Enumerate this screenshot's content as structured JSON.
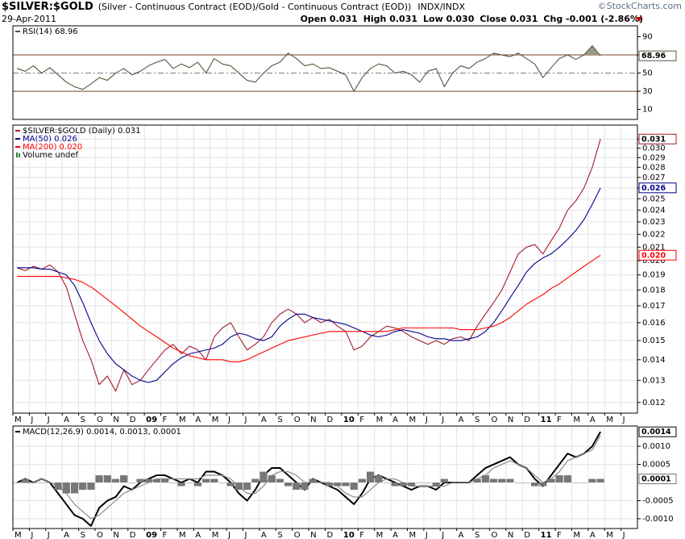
{
  "header": {
    "symbol": "$SILVER:$GOLD",
    "description": "(Silver - Continuous Contract (EOD)/Gold - Continuous Contract (EOD))",
    "exchange": "INDX/INDX",
    "date": "29-Apr-2011",
    "quote": [
      "Open 0.031",
      "High 0.031",
      "Low 0.030",
      "Close 0.031",
      "Chg -0.001 (-2.86%)"
    ],
    "watermark": "©StockCharts.com"
  },
  "chart_data": [
    {
      "type": "line",
      "legend": "RSI(14) 68.96",
      "ylim": [
        -1,
        102
      ],
      "yticks": [
        10,
        30,
        50,
        70,
        90
      ],
      "hlines": [
        30,
        50,
        70
      ],
      "shade_color": "#9b9b8b",
      "series": [
        {
          "color": "#55573f",
          "boxed": true,
          "values": [
            55,
            52,
            58,
            50,
            56,
            48,
            40,
            35,
            32,
            38,
            45,
            42,
            50,
            55,
            48,
            52,
            58,
            62,
            65,
            55,
            60,
            56,
            62,
            50,
            66,
            60,
            58,
            50,
            42,
            40,
            50,
            58,
            62,
            72,
            66,
            58,
            60,
            55,
            56,
            52,
            48,
            30,
            45,
            55,
            60,
            58,
            50,
            52,
            48,
            40,
            52,
            55,
            35,
            50,
            58,
            55,
            62,
            66,
            72,
            70,
            68,
            72,
            66,
            60,
            45,
            56,
            66,
            70,
            65,
            70,
            80,
            68.96,
            null,
            null,
            null,
            null
          ]
        }
      ]
    },
    {
      "type": "line",
      "log": true,
      "grid": true,
      "legend_note": "Volume undef",
      "ylim": [
        0.01155,
        0.0326
      ],
      "yticks": [
        0.012,
        0.013,
        0.014,
        0.015,
        0.016,
        0.017,
        0.018,
        0.019,
        {
          "value": 0.02,
          "label": "0.020"
        },
        0.021,
        0.022,
        0.023,
        0.024,
        0.025,
        0.026,
        0.027,
        0.028,
        0.029,
        {
          "value": 0.03,
          "label": "0.030"
        },
        0.031
      ],
      "categories": [
        "M",
        null,
        "J",
        null,
        "J",
        null,
        "A",
        null,
        "S",
        null,
        "O",
        null,
        "N",
        null,
        "D",
        null,
        "09",
        null,
        "F",
        null,
        "M",
        null,
        "A",
        null,
        "M",
        null,
        "J",
        null,
        "J",
        null,
        "A",
        null,
        "S",
        null,
        "O",
        null,
        "N",
        null,
        "D",
        null,
        "10",
        null,
        "F",
        null,
        "M",
        null,
        "A",
        null,
        "M",
        null,
        "J",
        null,
        "J",
        null,
        "A",
        null,
        "S",
        null,
        "O",
        null,
        "N",
        null,
        "D",
        null,
        "11",
        null,
        "F",
        null,
        "M",
        null,
        "A",
        null,
        "M",
        null,
        "J",
        null
      ],
      "series": [
        {
          "name": "$SILVER:$GOLD (Daily) 0.031",
          "color": "#a01c2c",
          "boxed": true,
          "values": [
            0.0195,
            0.0193,
            0.0196,
            0.0194,
            0.0197,
            0.0192,
            0.0182,
            0.0165,
            0.015,
            0.014,
            0.0128,
            0.0132,
            0.0125,
            0.0135,
            0.0128,
            0.013,
            0.0135,
            0.014,
            0.0145,
            0.0148,
            0.0143,
            0.0147,
            0.0145,
            0.014,
            0.0152,
            0.0157,
            0.016,
            0.0152,
            0.0145,
            0.0148,
            0.0152,
            0.016,
            0.0165,
            0.0168,
            0.0165,
            0.016,
            0.0163,
            0.016,
            0.0162,
            0.0158,
            0.0155,
            0.0145,
            0.0147,
            0.0152,
            0.0155,
            0.0158,
            0.0157,
            0.0155,
            0.0152,
            0.015,
            0.0148,
            0.015,
            0.0148,
            0.0151,
            0.0152,
            0.015,
            0.0158,
            0.0165,
            0.0172,
            0.018,
            0.0192,
            0.0205,
            0.021,
            0.0212,
            0.0205,
            0.0215,
            0.0225,
            0.024,
            0.0248,
            0.026,
            0.028,
            0.031,
            null,
            null,
            null,
            null
          ]
        },
        {
          "name": "MA(50) 0.026",
          "color": "#00008b",
          "boxed": true,
          "values": [
            0.0195,
            0.0195,
            0.0195,
            0.0194,
            0.0194,
            0.0192,
            0.019,
            0.0183,
            0.0172,
            0.016,
            0.015,
            0.0143,
            0.0138,
            0.0135,
            0.0132,
            0.013,
            0.0129,
            0.013,
            0.0134,
            0.0138,
            0.0141,
            0.0143,
            0.0144,
            0.0145,
            0.0146,
            0.0148,
            0.0152,
            0.0154,
            0.0153,
            0.0151,
            0.015,
            0.0152,
            0.0158,
            0.0162,
            0.0165,
            0.0165,
            0.0163,
            0.0162,
            0.0161,
            0.016,
            0.0159,
            0.0157,
            0.0155,
            0.0153,
            0.0152,
            0.0153,
            0.0155,
            0.0156,
            0.0155,
            0.0154,
            0.0152,
            0.0151,
            0.0151,
            0.015,
            0.015,
            0.0151,
            0.0152,
            0.0155,
            0.016,
            0.0167,
            0.0175,
            0.0183,
            0.0192,
            0.0198,
            0.0202,
            0.0205,
            0.021,
            0.0216,
            0.0223,
            0.0232,
            0.0245,
            0.026,
            null,
            null,
            null,
            null
          ]
        },
        {
          "name": "MA(200) 0.020",
          "color": "#ff0000",
          "boxed": true,
          "values": [
            0.0189,
            0.0189,
            0.0189,
            0.0189,
            0.0189,
            0.0189,
            0.0188,
            0.0187,
            0.0185,
            0.0182,
            0.0178,
            0.0174,
            0.017,
            0.0166,
            0.0162,
            0.0158,
            0.0155,
            0.0152,
            0.0149,
            0.0146,
            0.0144,
            0.0142,
            0.0141,
            0.014,
            0.014,
            0.014,
            0.0139,
            0.0139,
            0.014,
            0.0142,
            0.0144,
            0.0146,
            0.0148,
            0.015,
            0.0151,
            0.0152,
            0.0153,
            0.0154,
            0.0155,
            0.0155,
            0.0155,
            0.0155,
            0.0155,
            0.0155,
            0.0155,
            0.0155,
            0.0156,
            0.0157,
            0.0157,
            0.0157,
            0.0157,
            0.0157,
            0.0157,
            0.0157,
            0.0156,
            0.0156,
            0.0156,
            0.0157,
            0.0158,
            0.016,
            0.0163,
            0.0167,
            0.0171,
            0.0174,
            0.0177,
            0.0181,
            0.0184,
            0.0188,
            0.0192,
            0.0196,
            0.02,
            0.0204,
            null,
            null,
            null,
            null
          ],
          "value_labels": [
            null,
            null,
            null,
            null,
            null,
            null,
            null,
            null,
            null,
            null,
            null,
            null,
            null,
            null,
            null,
            null,
            null,
            null,
            null,
            null,
            null,
            null,
            null,
            null,
            null,
            null,
            null,
            null,
            null,
            null,
            null,
            null,
            null,
            null,
            null,
            null,
            null,
            null,
            null,
            null,
            null,
            null,
            null,
            null,
            null,
            null,
            null,
            null,
            null,
            null,
            null,
            null,
            null,
            null,
            null,
            null,
            null,
            null,
            null,
            null,
            null,
            null,
            null,
            null,
            null,
            null,
            null,
            null,
            null,
            null,
            null,
            "0.020",
            null,
            null,
            null,
            null
          ]
        }
      ]
    },
    {
      "type": "line",
      "grid": true,
      "legend": "MACD(12,26,9) 0.0014, 0.0013, 0.0001",
      "ylim": [
        -0.00127,
        0.00156
      ],
      "yticks": [
        {
          "value": -0.001,
          "label": "-0.0010"
        },
        -0.0005,
        0.0005,
        {
          "value": 0.001,
          "label": "0.0010"
        }
      ],
      "series": [
        {
          "color": "#000000",
          "width": 2,
          "boxed": true,
          "values": [
            0,
            0.0001,
            0,
            0.0001,
            0,
            -0.0003,
            -0.0006,
            -0.0009,
            -0.001,
            -0.0012,
            -0.0007,
            -0.0005,
            -0.0004,
            -0.0001,
            -0.0002,
            0,
            0.0001,
            0.0002,
            0.0002,
            0.0001,
            0,
            0.0001,
            0,
            0.0003,
            0.0003,
            0.0002,
            0,
            -0.0003,
            -0.0005,
            -0.0002,
            0.0002,
            0.0004,
            0.0004,
            0.0002,
            0,
            -0.0002,
            0.0001,
            0,
            -0.0001,
            -0.0002,
            -0.0004,
            -0.0006,
            -0.0003,
            0.0001,
            0.0002,
            0.0001,
            0,
            -0.0001,
            -0.0002,
            -0.0001,
            -0.0001,
            -0.0002,
            0,
            0,
            0,
            0,
            0.0002,
            0.0004,
            0.0005,
            0.0006,
            0.0007,
            0.0005,
            0.0004,
            0.0001,
            -0.0001,
            0.0002,
            0.0005,
            0.0008,
            0.0007,
            0.0008,
            0.001,
            0.0014,
            null,
            null,
            null,
            null
          ]
        },
        {
          "color": "#8a8a8a",
          "width": 1.2,
          "values": [
            0,
            0,
            0,
            0.0001,
            0,
            -0.0001,
            -0.0003,
            -0.0006,
            -0.0008,
            -0.001,
            -0.0009,
            -0.0007,
            -0.0005,
            -0.0003,
            -0.0002,
            -0.0001,
            0,
            0.0001,
            0.0001,
            0.0001,
            0.0001,
            0.0001,
            0.0001,
            0.0002,
            0.0002,
            0.0002,
            0.0001,
            -0.0001,
            -0.0003,
            -0.0003,
            -0.0001,
            0.0002,
            0.0003,
            0.0003,
            0.0002,
            0,
            0,
            0,
            0,
            -0.0001,
            -0.0003,
            -0.0004,
            -0.0004,
            -0.0002,
            0,
            0.0001,
            0.0001,
            0,
            -0.0001,
            -0.0001,
            -0.0001,
            -0.0001,
            -0.0001,
            0,
            0,
            0,
            0.0001,
            0.0002,
            0.0004,
            0.0005,
            0.0006,
            0.0005,
            0.0004,
            0.0002,
            0,
            0.0001,
            0.0003,
            0.0006,
            0.0007,
            0.0008,
            0.0009,
            0.0013,
            null,
            null,
            null,
            null
          ]
        },
        {
          "type": "bar",
          "color": "#777777",
          "boxed": true,
          "values": [
            0,
            0.0001,
            0,
            0,
            0,
            -0.0002,
            -0.0003,
            -0.0003,
            -0.0002,
            -0.0002,
            0.0002,
            0.0002,
            0.0001,
            0.0002,
            0,
            0.0001,
            0.0001,
            0.0001,
            0.0001,
            0,
            -0.0001,
            0,
            -0.0001,
            0.0001,
            0.0001,
            0,
            -0.0001,
            -0.0002,
            -0.0002,
            0.0001,
            0.0003,
            0.0002,
            0.0001,
            -0.0001,
            -0.0002,
            -0.0002,
            0.0001,
            0,
            -0.0001,
            -0.0001,
            -0.0001,
            -0.0002,
            0.0001,
            0.0003,
            0.0002,
            0,
            -0.0001,
            -0.0001,
            -0.0001,
            0,
            0,
            -0.0001,
            0.0001,
            0,
            0,
            0,
            0.0001,
            0.0002,
            0.0001,
            0.0001,
            0.0001,
            0,
            0,
            -0.0001,
            -0.0001,
            0.0001,
            0.0002,
            0.0002,
            0,
            0,
            0.0001,
            0.0001,
            null,
            null,
            null,
            null
          ]
        }
      ]
    }
  ]
}
